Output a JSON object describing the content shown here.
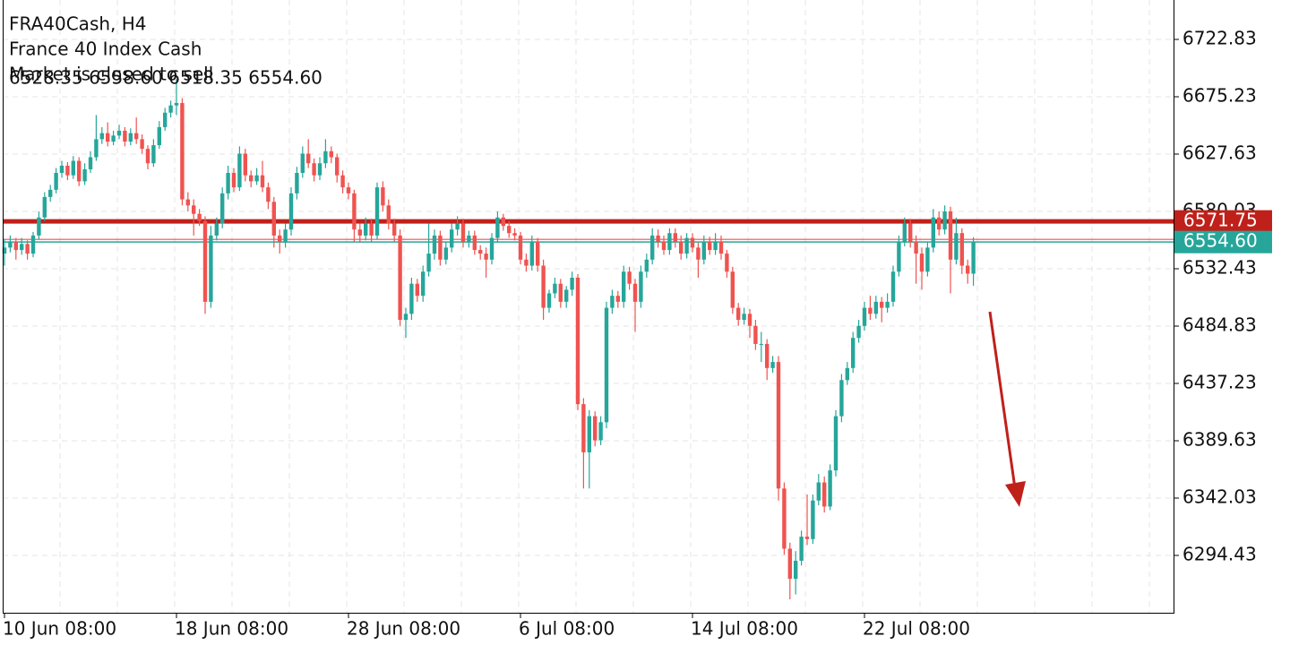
{
  "chart_data": {
    "type": "candlestick",
    "title": "FRA40Cash, H4",
    "subtitle": "France 40 Index Cash",
    "status": "Market is closed to sell",
    "ohlc_text": "6528.35 6558.60 6518.35 6554.60",
    "up_color": "#26a69a",
    "down_color": "#ef5350",
    "ylim": [
      6246.82,
      6755.55
    ],
    "yticks": [
      6722.83,
      6675.23,
      6627.63,
      6580.03,
      6532.43,
      6484.83,
      6437.23,
      6389.63,
      6342.03,
      6294.43
    ],
    "grid": true,
    "levels": [
      {
        "value": 6571.75,
        "label": "6571.75",
        "color": "#c0201a"
      },
      {
        "value": 6554.6,
        "label": "6554.60",
        "color": "#26a69a"
      }
    ],
    "categories": [
      "10 Jun 08:00",
      null,
      null,
      null,
      null,
      null,
      null,
      null,
      null,
      null,
      null,
      null,
      null,
      null,
      null,
      null,
      null,
      null,
      null,
      null,
      null,
      null,
      null,
      null,
      null,
      null,
      null,
      null,
      null,
      null,
      "18 Jun 08:00",
      null,
      null,
      null,
      null,
      null,
      null,
      null,
      null,
      null,
      null,
      null,
      null,
      null,
      null,
      null,
      null,
      null,
      null,
      null,
      null,
      null,
      null,
      null,
      null,
      null,
      null,
      null,
      null,
      null,
      "28 Jun 08:00",
      null,
      null,
      null,
      null,
      null,
      null,
      null,
      null,
      null,
      null,
      null,
      null,
      null,
      null,
      null,
      null,
      null,
      null,
      null,
      null,
      null,
      null,
      null,
      null,
      null,
      null,
      null,
      null,
      null,
      "6 Jul 08:00",
      null,
      null,
      null,
      null,
      null,
      null,
      null,
      null,
      null,
      null,
      null,
      null,
      null,
      null,
      null,
      null,
      null,
      null,
      null,
      null,
      null,
      null,
      null,
      null,
      null,
      null,
      null,
      null,
      null,
      "14 Jul 08:00",
      null,
      null,
      null,
      null,
      null,
      null,
      null,
      null,
      null,
      null,
      null,
      null,
      null,
      null,
      null,
      null,
      null,
      null,
      null,
      null,
      null,
      null,
      null,
      null,
      null,
      null,
      null,
      null,
      null,
      "22 Jul 08:00",
      null,
      null,
      null,
      null,
      null,
      null,
      null,
      null,
      null,
      null,
      null,
      null,
      null,
      null,
      null,
      null,
      null,
      null,
      null
    ],
    "candles": [
      [
        6545,
        6557,
        6535,
        6550
      ],
      [
        6550,
        6560,
        6546,
        6555
      ],
      [
        6555,
        6558,
        6540,
        6548
      ],
      [
        6548,
        6558,
        6544,
        6553
      ],
      [
        6553,
        6556,
        6540,
        6545
      ],
      [
        6545,
        6563,
        6542,
        6560
      ],
      [
        6560,
        6580,
        6557,
        6575
      ],
      [
        6575,
        6596,
        6572,
        6592
      ],
      [
        6592,
        6602,
        6588,
        6598
      ],
      [
        6598,
        6616,
        6595,
        6612
      ],
      [
        6612,
        6622,
        6608,
        6618
      ],
      [
        6618,
        6621,
        6606,
        6610
      ],
      [
        6610,
        6626,
        6607,
        6622
      ],
      [
        6622,
        6625,
        6601,
        6605
      ],
      [
        6605,
        6620,
        6602,
        6615
      ],
      [
        6615,
        6630,
        6612,
        6625
      ],
      [
        6625,
        6660,
        6622,
        6640
      ],
      [
        6640,
        6650,
        6636,
        6645
      ],
      [
        6645,
        6654,
        6634,
        6638
      ],
      [
        6638,
        6647,
        6635,
        6643
      ],
      [
        6643,
        6652,
        6640,
        6647
      ],
      [
        6647,
        6650,
        6634,
        6638
      ],
      [
        6638,
        6649,
        6635,
        6645
      ],
      [
        6645,
        6658,
        6636,
        6640
      ],
      [
        6640,
        6644,
        6628,
        6632
      ],
      [
        6632,
        6635,
        6615,
        6620
      ],
      [
        6620,
        6640,
        6617,
        6635
      ],
      [
        6635,
        6655,
        6632,
        6650
      ],
      [
        6650,
        6666,
        6647,
        6662
      ],
      [
        6662,
        6672,
        6658,
        6668
      ],
      [
        6668,
        6690,
        6660,
        6670
      ],
      [
        6670,
        6674,
        6585,
        6590
      ],
      [
        6590,
        6596,
        6580,
        6585
      ],
      [
        6585,
        6590,
        6560,
        6578
      ],
      [
        6578,
        6582,
        6568,
        6572
      ],
      [
        6572,
        6576,
        6495,
        6505
      ],
      [
        6505,
        6568,
        6500,
        6560
      ],
      [
        6560,
        6575,
        6556,
        6570
      ],
      [
        6570,
        6600,
        6566,
        6595
      ],
      [
        6595,
        6618,
        6590,
        6612
      ],
      [
        6612,
        6616,
        6596,
        6600
      ],
      [
        6600,
        6634,
        6597,
        6628
      ],
      [
        6628,
        6632,
        6605,
        6610
      ],
      [
        6610,
        6614,
        6600,
        6605
      ],
      [
        6605,
        6616,
        6602,
        6610
      ],
      [
        6610,
        6622,
        6596,
        6600
      ],
      [
        6600,
        6604,
        6582,
        6588
      ],
      [
        6588,
        6592,
        6550,
        6560
      ],
      [
        6560,
        6565,
        6545,
        6555
      ],
      [
        6555,
        6570,
        6550,
        6565
      ],
      [
        6565,
        6600,
        6560,
        6595
      ],
      [
        6595,
        6617,
        6590,
        6612
      ],
      [
        6612,
        6634,
        6608,
        6628
      ],
      [
        6628,
        6640,
        6616,
        6620
      ],
      [
        6620,
        6624,
        6605,
        6610
      ],
      [
        6610,
        6625,
        6606,
        6620
      ],
      [
        6620,
        6640,
        6616,
        6630
      ],
      [
        6630,
        6634,
        6620,
        6625
      ],
      [
        6625,
        6628,
        6604,
        6610
      ],
      [
        6610,
        6614,
        6595,
        6600
      ],
      [
        6600,
        6604,
        6590,
        6595
      ],
      [
        6595,
        6598,
        6555,
        6565
      ],
      [
        6565,
        6570,
        6554,
        6560
      ],
      [
        6560,
        6575,
        6556,
        6570
      ],
      [
        6570,
        6574,
        6555,
        6560
      ],
      [
        6560,
        6604,
        6557,
        6600
      ],
      [
        6600,
        6605,
        6580,
        6585
      ],
      [
        6585,
        6590,
        6565,
        6570
      ],
      [
        6570,
        6574,
        6555,
        6560
      ],
      [
        6560,
        6565,
        6485,
        6490
      ],
      [
        6490,
        6500,
        6475,
        6495
      ],
      [
        6495,
        6525,
        6490,
        6520
      ],
      [
        6520,
        6524,
        6505,
        6510
      ],
      [
        6510,
        6535,
        6505,
        6530
      ],
      [
        6530,
        6570,
        6526,
        6545
      ],
      [
        6545,
        6565,
        6540,
        6560
      ],
      [
        6560,
        6564,
        6535,
        6540
      ],
      [
        6540,
        6555,
        6536,
        6550
      ],
      [
        6550,
        6570,
        6546,
        6565
      ],
      [
        6565,
        6576,
        6560,
        6570
      ],
      [
        6570,
        6574,
        6550,
        6555
      ],
      [
        6555,
        6564,
        6550,
        6560
      ],
      [
        6560,
        6564,
        6544,
        6548
      ],
      [
        6548,
        6552,
        6540,
        6545
      ],
      [
        6545,
        6550,
        6525,
        6540
      ],
      [
        6540,
        6562,
        6536,
        6558
      ],
      [
        6558,
        6580,
        6554,
        6575
      ],
      [
        6575,
        6578,
        6564,
        6568
      ],
      [
        6568,
        6572,
        6558,
        6562
      ],
      [
        6562,
        6566,
        6556,
        6560
      ],
      [
        6560,
        6563,
        6536,
        6540
      ],
      [
        6540,
        6545,
        6530,
        6535
      ],
      [
        6535,
        6560,
        6531,
        6555
      ],
      [
        6555,
        6558,
        6530,
        6535
      ],
      [
        6535,
        6540,
        6490,
        6500
      ],
      [
        6500,
        6515,
        6496,
        6512
      ],
      [
        6512,
        6525,
        6508,
        6520
      ],
      [
        6520,
        6524,
        6500,
        6505
      ],
      [
        6505,
        6518,
        6500,
        6515
      ],
      [
        6515,
        6530,
        6510,
        6525
      ],
      [
        6525,
        6528,
        6415,
        6420
      ],
      [
        6420,
        6425,
        6350,
        6380
      ],
      [
        6380,
        6415,
        6350,
        6410
      ],
      [
        6410,
        6414,
        6385,
        6390
      ],
      [
        6390,
        6410,
        6386,
        6405
      ],
      [
        6405,
        6505,
        6400,
        6500
      ],
      [
        6500,
        6515,
        6495,
        6510
      ],
      [
        6510,
        6514,
        6500,
        6505
      ],
      [
        6505,
        6535,
        6500,
        6530
      ],
      [
        6530,
        6534,
        6515,
        6520
      ],
      [
        6520,
        6524,
        6480,
        6505
      ],
      [
        6505,
        6535,
        6500,
        6530
      ],
      [
        6530,
        6545,
        6525,
        6540
      ],
      [
        6540,
        6566,
        6536,
        6560
      ],
      [
        6560,
        6565,
        6550,
        6555
      ],
      [
        6555,
        6560,
        6544,
        6548
      ],
      [
        6548,
        6566,
        6544,
        6562
      ],
      [
        6562,
        6566,
        6550,
        6555
      ],
      [
        6555,
        6560,
        6540,
        6545
      ],
      [
        6545,
        6562,
        6541,
        6558
      ],
      [
        6558,
        6562,
        6546,
        6550
      ],
      [
        6550,
        6554,
        6525,
        6540
      ],
      [
        6540,
        6560,
        6536,
        6555
      ],
      [
        6555,
        6559,
        6544,
        6548
      ],
      [
        6548,
        6562,
        6544,
        6555
      ],
      [
        6555,
        6560,
        6540,
        6545
      ],
      [
        6545,
        6548,
        6525,
        6530
      ],
      [
        6530,
        6534,
        6495,
        6500
      ],
      [
        6500,
        6504,
        6485,
        6490
      ],
      [
        6490,
        6500,
        6486,
        6495
      ],
      [
        6495,
        6499,
        6475,
        6485
      ],
      [
        6485,
        6490,
        6465,
        6470
      ],
      [
        6470,
        6480,
        6455,
        6470
      ],
      [
        6470,
        6474,
        6440,
        6450
      ],
      [
        6450,
        6460,
        6446,
        6455
      ],
      [
        6455,
        6460,
        6340,
        6350
      ],
      [
        6350,
        6355,
        6295,
        6300
      ],
      [
        6300,
        6305,
        6258,
        6275
      ],
      [
        6275,
        6298,
        6262,
        6290
      ],
      [
        6290,
        6315,
        6286,
        6310
      ],
      [
        6310,
        6345,
        6303,
        6308
      ],
      [
        6308,
        6345,
        6304,
        6340
      ],
      [
        6340,
        6362,
        6336,
        6355
      ],
      [
        6355,
        6360,
        6330,
        6335
      ],
      [
        6335,
        6370,
        6332,
        6365
      ],
      [
        6365,
        6415,
        6360,
        6410
      ],
      [
        6410,
        6445,
        6405,
        6440
      ],
      [
        6440,
        6455,
        6436,
        6450
      ],
      [
        6450,
        6480,
        6446,
        6475
      ],
      [
        6475,
        6490,
        6471,
        6485
      ],
      [
        6485,
        6505,
        6481,
        6500
      ],
      [
        6500,
        6510,
        6490,
        6495
      ],
      [
        6495,
        6510,
        6491,
        6505
      ],
      [
        6505,
        6509,
        6488,
        6500
      ],
      [
        6500,
        6512,
        6496,
        6505
      ],
      [
        6505,
        6535,
        6501,
        6530
      ],
      [
        6530,
        6560,
        6526,
        6555
      ],
      [
        6555,
        6575,
        6551,
        6570
      ],
      [
        6570,
        6574,
        6550,
        6555
      ],
      [
        6555,
        6560,
        6520,
        6545
      ],
      [
        6545,
        6550,
        6515,
        6530
      ],
      [
        6530,
        6555,
        6526,
        6550
      ],
      [
        6550,
        6582,
        6546,
        6575
      ],
      [
        6575,
        6580,
        6560,
        6565
      ],
      [
        6565,
        6585,
        6561,
        6580
      ],
      [
        6580,
        6584,
        6512,
        6540
      ],
      [
        6540,
        6575,
        6536,
        6562
      ],
      [
        6562,
        6566,
        6528,
        6535
      ],
      [
        6535,
        6540,
        6520,
        6528.35
      ],
      [
        6528.35,
        6558.6,
        6518.35,
        6554.6
      ]
    ]
  }
}
